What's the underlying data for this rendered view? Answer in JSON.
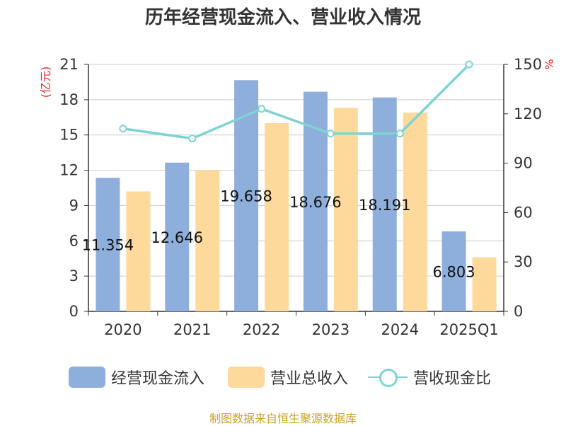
{
  "title": "历年经营现金流入、营业收入情况",
  "source": "制图数据来自恒生聚源数据库",
  "colors": {
    "operating_cash_inflow": "#8eaedb",
    "total_revenue": "#fdd99b",
    "ratio": "#7fd3d3",
    "axis_unit_red": "#e8262b",
    "grid": "#cccccc",
    "text": "#333333"
  },
  "chart_data": {
    "type": "bar",
    "title": "历年经营现金流入、营业收入情况",
    "categories": [
      "2020",
      "2021",
      "2022",
      "2023",
      "2024",
      "2025Q1"
    ],
    "y_left": {
      "label": "(亿元)",
      "ticks": [
        "0",
        "3",
        "6",
        "9",
        "12",
        "15",
        "18",
        "21"
      ],
      "lim": [
        0,
        21
      ]
    },
    "y_right": {
      "label": "%",
      "ticks": [
        "0",
        "30",
        "60",
        "90",
        "120",
        "150"
      ],
      "lim": [
        0,
        150
      ]
    },
    "grid": true,
    "legend_position": "bottom",
    "series": [
      {
        "name": "经营现金流入",
        "type": "bar",
        "axis": "left",
        "values": [
          11.354,
          12.646,
          19.658,
          18.676,
          18.191,
          6.803
        ],
        "labels": [
          "11.354",
          "12.646",
          "19.658",
          "18.676",
          "18.191",
          "6.803"
        ]
      },
      {
        "name": "营业总收入",
        "type": "bar",
        "axis": "left",
        "values": [
          10.2,
          12.0,
          16.0,
          17.3,
          16.9,
          4.6
        ]
      },
      {
        "name": "营收现金比",
        "type": "line",
        "axis": "right",
        "values": [
          111,
          105,
          123,
          108,
          108,
          150
        ]
      }
    ]
  }
}
